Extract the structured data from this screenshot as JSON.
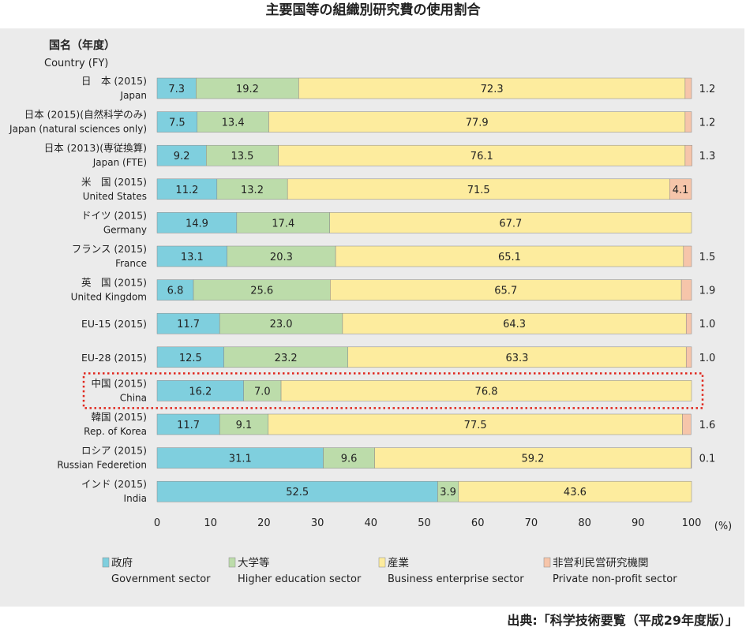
{
  "title": "主要国等の組織別研究費の使用割合",
  "source": "出典:「科学技術要覧（平成29年度版）」",
  "chart_data": {
    "type": "bar",
    "orientation": "horizontal",
    "stacked": true,
    "header": {
      "ja": "国名（年度）",
      "en": "Country (FY)"
    },
    "xlim": [
      0,
      100
    ],
    "x_ticks": [
      0,
      10,
      20,
      30,
      40,
      50,
      60,
      70,
      80,
      90,
      100
    ],
    "unit": "(%)",
    "categories": [
      {
        "ja": "日　本",
        "fy": "(2015)",
        "en": "Japan"
      },
      {
        "ja": "日本",
        "fy": "(2015)(自然科学のみ)",
        "en": "Japan (natural sciences only)"
      },
      {
        "ja": "日本",
        "fy": "(2013)(専従換算)",
        "en": "Japan (FTE)"
      },
      {
        "ja": "米　国",
        "fy": "(2015)",
        "en": "United States"
      },
      {
        "ja": "ドイツ",
        "fy": "(2015)",
        "en": "Germany"
      },
      {
        "ja": "フランス",
        "fy": "(2015)",
        "en": "France"
      },
      {
        "ja": "英　国",
        "fy": "(2015)",
        "en": "United Kingdom"
      },
      {
        "ja": "EU-15",
        "fy": "(2015)",
        "en": ""
      },
      {
        "ja": "EU-28",
        "fy": "(2015)",
        "en": ""
      },
      {
        "ja": "中国",
        "fy": "(2015)",
        "en": "China"
      },
      {
        "ja": "韓国",
        "fy": "(2015)",
        "en": "Rep. of Korea"
      },
      {
        "ja": "ロシア",
        "fy": "(2015)",
        "en": "Russian Federetion"
      },
      {
        "ja": "インド",
        "fy": "(2015)",
        "en": "India"
      }
    ],
    "series": [
      {
        "name": "政府",
        "name_en": "Government sector",
        "color": "#7fcfde",
        "values": [
          7.3,
          7.5,
          9.2,
          11.2,
          14.9,
          13.1,
          6.8,
          11.7,
          12.5,
          16.2,
          11.7,
          31.1,
          52.5
        ]
      },
      {
        "name": "大学等",
        "name_en": "Higher education sector",
        "color": "#bcdcaa",
        "values": [
          19.2,
          13.4,
          13.5,
          13.2,
          17.4,
          20.3,
          25.6,
          23.0,
          23.2,
          7.0,
          9.1,
          9.6,
          3.9
        ]
      },
      {
        "name": "産業",
        "name_en": "Business enterprise sector",
        "color": "#fdec9e",
        "values": [
          72.3,
          77.9,
          76.1,
          71.5,
          67.7,
          65.1,
          65.7,
          64.3,
          63.3,
          76.8,
          77.5,
          59.2,
          43.6
        ]
      },
      {
        "name": "非営利民営研究機関",
        "name_en": "Private non-profit sector",
        "color": "#f6c5aa",
        "values": [
          1.2,
          1.2,
          1.3,
          4.1,
          null,
          1.5,
          1.9,
          1.0,
          1.0,
          null,
          1.6,
          0.1,
          null
        ]
      }
    ],
    "highlight_category": "中国",
    "highlight_color": "#e0261c"
  }
}
